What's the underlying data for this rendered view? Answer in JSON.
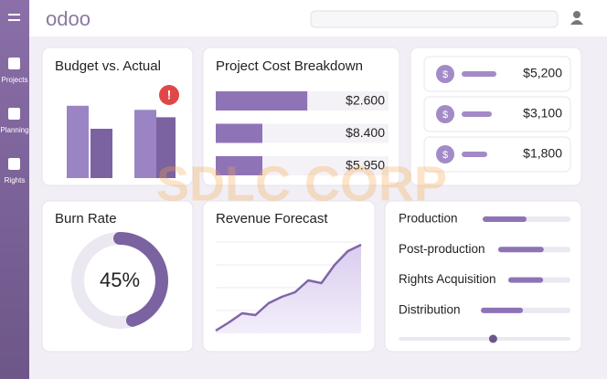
{
  "app": {
    "logo": "odoo",
    "nav": [
      "Projects",
      "Planning",
      "Rights"
    ]
  },
  "watermark": "SDLC CORP",
  "budget": {
    "title": "Budget vs. Actual",
    "alert": "!",
    "bars": [
      88,
      60,
      83,
      74
    ]
  },
  "cost": {
    "title": "Project Cost Breakdown",
    "rows": [
      {
        "fill": 53,
        "value": "$2.600"
      },
      {
        "fill": 27,
        "value": "$8.400"
      },
      {
        "fill": 27,
        "value": "$5.950"
      }
    ]
  },
  "summary": {
    "rows": [
      {
        "icon": "$",
        "value": "$5,200"
      },
      {
        "icon": "$",
        "value": "$3,100"
      },
      {
        "icon": "$",
        "value": "$1,800"
      }
    ]
  },
  "burn": {
    "title": "Burn Rate",
    "value": 45,
    "label": "45%"
  },
  "forecast": {
    "title": "Revenue Forecast",
    "values": [
      3,
      12,
      22,
      20,
      33,
      40,
      45,
      58,
      55,
      75,
      90,
      97
    ]
  },
  "phases": {
    "rows": [
      {
        "label": "Production",
        "progress": 50
      },
      {
        "label": "Post-production",
        "progress": 63
      },
      {
        "label": "Rights Acquisition",
        "progress": 56
      },
      {
        "label": "Distribution",
        "progress": 47
      }
    ],
    "slider": 55
  }
}
